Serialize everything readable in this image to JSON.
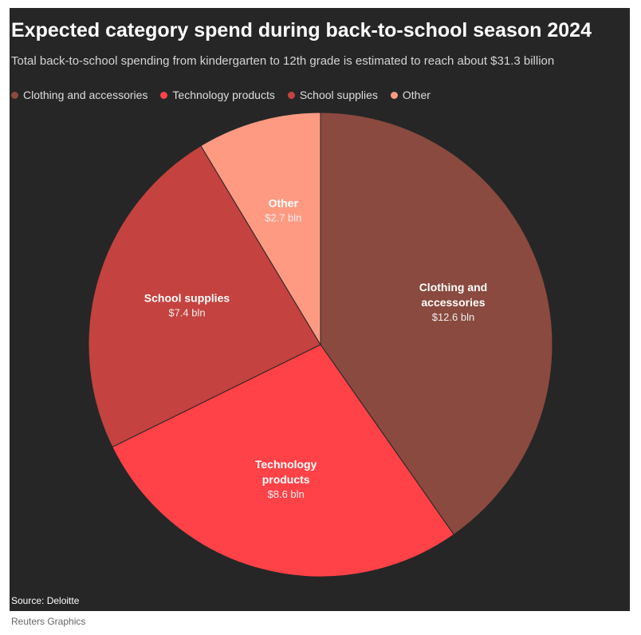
{
  "chart_data": {
    "type": "pie",
    "title": "Expected category spend during back-to-school season 2024",
    "subtitle": "Total back-to-school spending from kindergarten to 12th grade is estimated to reach about $31.3 billion",
    "categories": [
      "Clothing and accessories",
      "Technology products",
      "School supplies",
      "Other"
    ],
    "values": [
      12.6,
      8.6,
      7.4,
      2.7
    ],
    "value_labels": [
      "$12.6 bln",
      "$8.6 bln",
      "$7.4 bln",
      "$2.7 bln"
    ],
    "colors": [
      "#8a4a3f",
      "#ff4247",
      "#c4423f",
      "#ff9a82"
    ],
    "source": "Source: Deloitte",
    "credit": "Reuters Graphics"
  }
}
